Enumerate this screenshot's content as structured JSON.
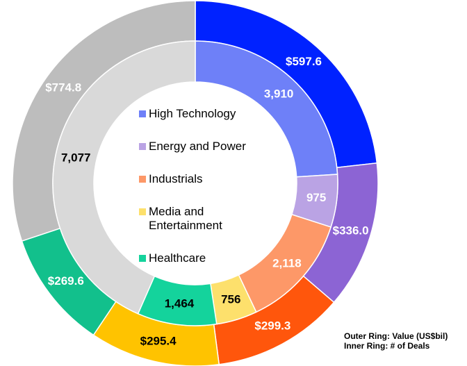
{
  "chart_data": {
    "type": "donut",
    "categories": [
      "High Technology",
      "Energy and Power",
      "Industrials",
      "Media and Entertainment",
      "Healthcare",
      null
    ],
    "series": [
      {
        "name": "Outer Ring: Value (US$bil)",
        "ring": "outer",
        "values": [
          597.6,
          336.0,
          299.3,
          295.4,
          269.6,
          774.8
        ],
        "value_labels": [
          "$597.6",
          "$336.0",
          "$299.3",
          "$295.4",
          "$269.6",
          "$774.8"
        ],
        "colors": [
          "#0022ff",
          "#8c64d4",
          "#ff560c",
          "#ffc300",
          "#12c08c",
          "#bdbdbd"
        ],
        "label_colors": [
          "#ffffff",
          "#ffffff",
          "#ffffff",
          "#000000",
          "#ffffff",
          "#ffffff"
        ]
      },
      {
        "name": "Inner Ring: # of Deals",
        "ring": "inner",
        "values": [
          3910,
          975,
          2118,
          756,
          1464,
          7077
        ],
        "value_labels": [
          "3,910",
          "975",
          "2,118",
          "756",
          "1,464",
          "7,077"
        ],
        "colors": [
          "#6e80f8",
          "#baa3e4",
          "#fd9868",
          "#fde06c",
          "#14d39c",
          "#d9d9d9"
        ],
        "label_colors": [
          "#ffffff",
          "#ffffff",
          "#ffffff",
          "#000000",
          "#000000",
          "#000000"
        ]
      }
    ]
  }
}
